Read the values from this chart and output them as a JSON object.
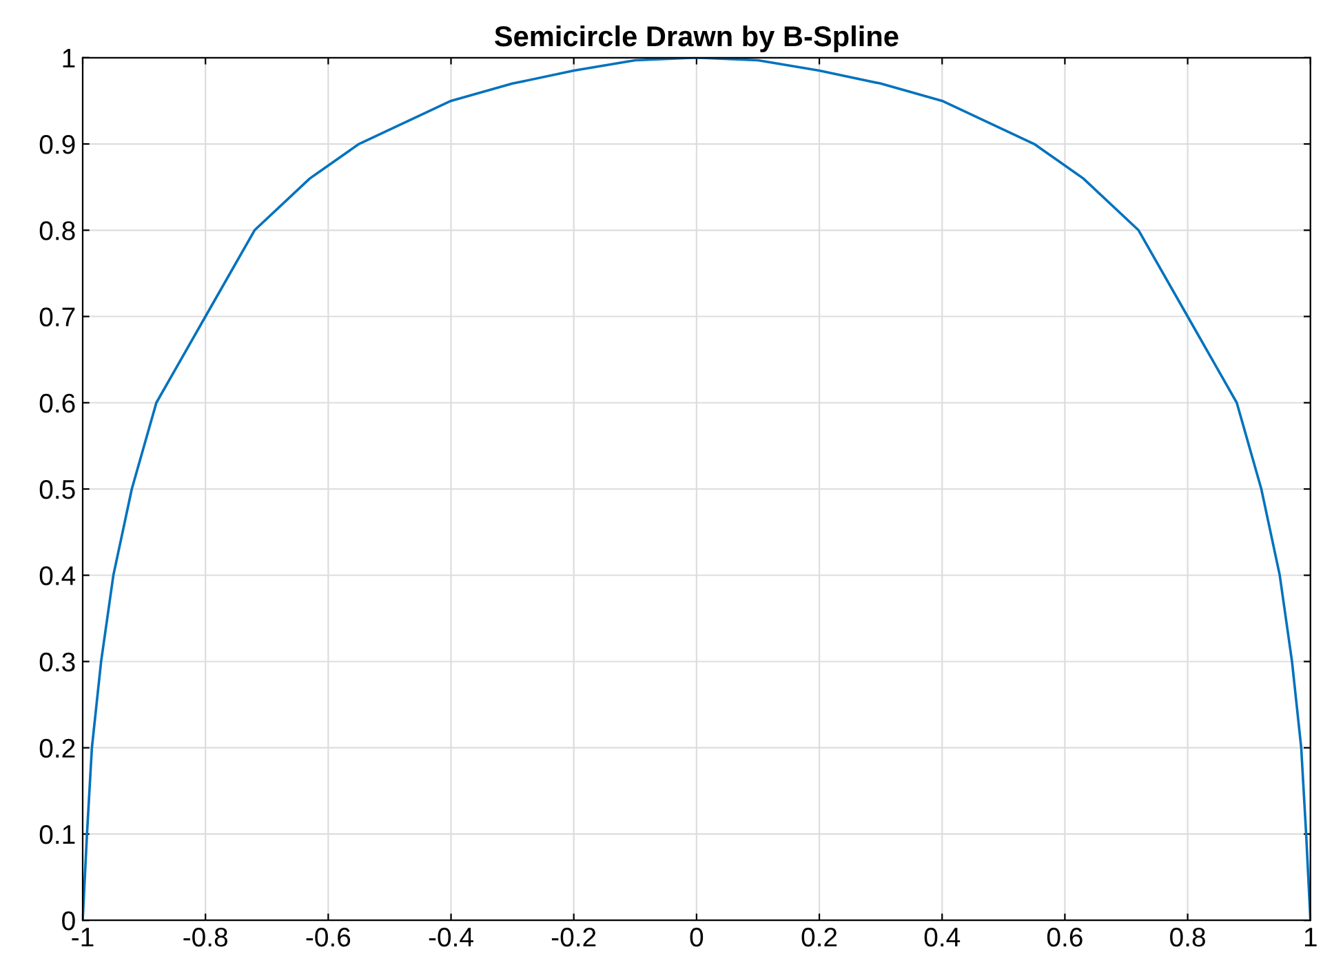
{
  "chart_data": {
    "type": "line",
    "title": "Semicircle Drawn by B-Spline",
    "series": [
      {
        "color": "#0072bd",
        "x": [
          -1,
          -0.993,
          -0.985,
          -0.97,
          -0.95,
          -0.92,
          -0.88,
          -0.8,
          -0.72,
          -0.63,
          -0.55,
          -0.4,
          -0.3,
          -0.2,
          -0.1,
          0,
          0.1,
          0.2,
          0.3,
          0.4,
          0.55,
          0.63,
          0.72,
          0.8,
          0.88,
          0.92,
          0.95,
          0.97,
          0.985,
          0.993,
          1
        ],
        "values": [
          0,
          0.1,
          0.2,
          0.3,
          0.4,
          0.5,
          0.6,
          0.7,
          0.8,
          0.86,
          0.9,
          0.95,
          0.97,
          0.985,
          0.997,
          1,
          0.997,
          0.985,
          0.97,
          0.95,
          0.9,
          0.86,
          0.8,
          0.7,
          0.6,
          0.5,
          0.4,
          0.3,
          0.2,
          0.1,
          0
        ]
      }
    ],
    "xlim": [
      -1,
      1
    ],
    "ylim": [
      0,
      1
    ],
    "xticks": [
      -1,
      -0.8,
      -0.6,
      -0.4,
      -0.2,
      0,
      0.2,
      0.4,
      0.6,
      0.8,
      1
    ],
    "yticks": [
      0,
      0.1,
      0.2,
      0.3,
      0.4,
      0.5,
      0.6,
      0.7,
      0.8,
      0.9,
      1
    ],
    "grid": true,
    "marker": "none",
    "line_style": "solid"
  }
}
